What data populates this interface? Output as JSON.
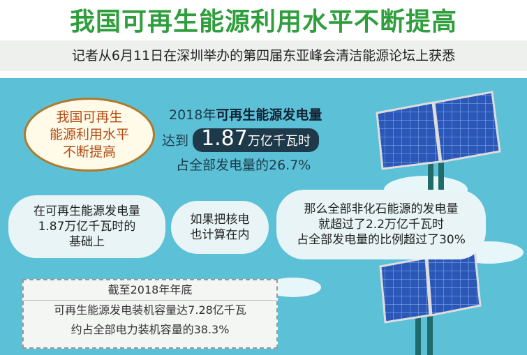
{
  "header": {
    "title": "我国可再生能源利用水平不断提高",
    "subtitle": "记者从6月11日在深圳举办的第四届东亚峰会清洁能源论坛上获悉"
  },
  "oval": {
    "lines": [
      "我国可再生",
      "能源利用水平",
      "不断提高"
    ]
  },
  "stat": {
    "year": "2018年",
    "label": "可再生能源发电量",
    "reach": "达到",
    "number": "1.87",
    "unit": "万亿千瓦时",
    "share": "占全部发电量的26.7%"
  },
  "bubbles": [
    {
      "lines": [
        "在可再生能源发电量",
        "1.87万亿千瓦时的",
        "基础上"
      ]
    },
    {
      "lines": [
        "如果把核电",
        "也计算在内"
      ]
    },
    {
      "lines": [
        "那么全部非化石能源的发电量",
        "就超过了2.2万亿千瓦时",
        "占全部发电量的比例超过了30%"
      ]
    }
  ],
  "box": {
    "heading": "截至2018年年底",
    "lines": [
      "可再生能源发电装机容量达7.28亿千瓦",
      "约占全部电力装机容量的38.3%"
    ]
  }
}
